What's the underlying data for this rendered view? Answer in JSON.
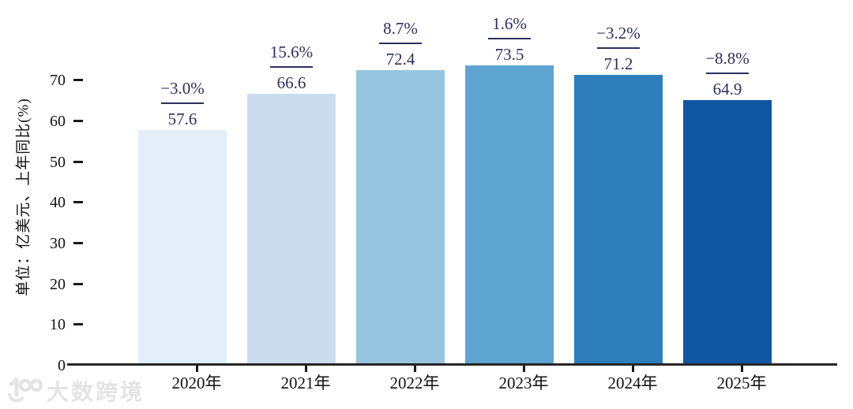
{
  "chart_data": {
    "type": "bar",
    "title": "",
    "categories": [
      "2020年",
      "2021年",
      "2022年",
      "2023年",
      "2024年",
      "2025年"
    ],
    "values": [
      57.6,
      66.6,
      72.4,
      73.5,
      71.2,
      64.9
    ],
    "value_labels": [
      "57.6",
      "66.6",
      "72.4",
      "73.5",
      "71.2",
      "64.9"
    ],
    "growth_values": [
      -3.0,
      15.6,
      8.7,
      1.6,
      -3.2,
      -8.8
    ],
    "growth_labels": [
      "−3.0%",
      "15.6%",
      "8.7%",
      "1.6%",
      "−3.2%",
      "−8.8%"
    ],
    "xlabel": "",
    "ylabel": "单位：亿美元、上年同比(%)",
    "yticks": [
      0,
      10,
      20,
      30,
      40,
      50,
      60,
      70
    ],
    "ylim": [
      0,
      77
    ],
    "grid": false,
    "legend": "none",
    "bar_colors": [
      "#e3eef9",
      "#cbdcef",
      "#97c4df",
      "#5ea4d0",
      "#2e7ebc",
      "#1156a2"
    ],
    "annotation_color": "#2e2e5f",
    "axis_color": "#262626"
  },
  "watermark": {
    "logo": "100",
    "text": "大数跨境"
  }
}
